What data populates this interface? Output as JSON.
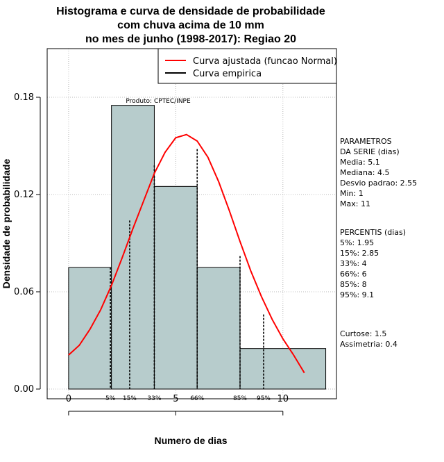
{
  "chart_data": {
    "type": "bar",
    "title_lines": [
      "Histograma e curva de densidade de probabilidade",
      "com chuva acima de 10 mm",
      "no mes de junho (1998-2017): Regiao 20"
    ],
    "xlabel": "Numero de dias",
    "ylabel": "Densidade de probabilidade",
    "xlim": [
      -1,
      12.5
    ],
    "ylim": [
      -0.006,
      0.21
    ],
    "x_ticks": [
      "0",
      "5",
      "10"
    ],
    "y_ticks": [
      "0.00",
      "0.06",
      "0.12",
      "0.18"
    ],
    "grid": true,
    "bins": [
      {
        "from": 0,
        "to": 2,
        "density": 0.075
      },
      {
        "from": 2,
        "to": 4,
        "density": 0.175
      },
      {
        "from": 4,
        "to": 6,
        "density": 0.125
      },
      {
        "from": 6,
        "to": 8,
        "density": 0.075
      },
      {
        "from": 8,
        "to": 12,
        "density": 0.025
      }
    ],
    "bar_color": "#b7cccc",
    "series": [
      {
        "name": "Curva ajustada (funcao Normal)",
        "color": "#ff0000",
        "x": [
          0,
          0.5,
          1,
          1.5,
          2,
          2.5,
          3,
          3.5,
          4,
          4.5,
          5,
          5.5,
          6,
          6.5,
          7,
          7.5,
          8,
          8.5,
          9,
          9.5,
          10,
          10.5,
          11
        ],
        "y": [
          0.021,
          0.027,
          0.037,
          0.049,
          0.064,
          0.081,
          0.099,
          0.116,
          0.133,
          0.146,
          0.155,
          0.157,
          0.153,
          0.143,
          0.128,
          0.11,
          0.091,
          0.073,
          0.057,
          0.043,
          0.031,
          0.021,
          0.01
        ]
      },
      {
        "name": "Curva empirica",
        "color": "#000000",
        "x": [],
        "y": []
      }
    ],
    "percentiles": [
      {
        "label": "5%",
        "x": 1.95,
        "y": 0.075
      },
      {
        "label": "15%",
        "x": 2.85,
        "y": 0.104
      },
      {
        "label": "33%",
        "x": 4,
        "y": 0.138
      },
      {
        "label": "66%",
        "x": 6,
        "y": 0.148
      },
      {
        "label": "85%",
        "x": 8,
        "y": 0.082
      },
      {
        "label": "95%",
        "x": 9.1,
        "y": 0.046
      }
    ],
    "annotation": "Produto: CPTEC/INPE",
    "legend_position": "top-right"
  },
  "side_panel": {
    "params_lines": [
      "PARAMETROS",
      "DA SERIE (dias)",
      "   Media: 5.1",
      "   Mediana: 4.5",
      "   Desvio padrao: 2.55",
      "   Min: 1",
      "   Max: 11"
    ],
    "percentis_lines": [
      "PERCENTIS (dias)",
      "   5%: 1.95",
      "   15%: 2.85",
      "   33%: 4",
      "   66%: 6",
      "   85%: 8",
      "   95%: 9.1"
    ],
    "stats_lines": [
      "   Curtose: 1.5",
      "Assimetria: 0.4"
    ]
  }
}
